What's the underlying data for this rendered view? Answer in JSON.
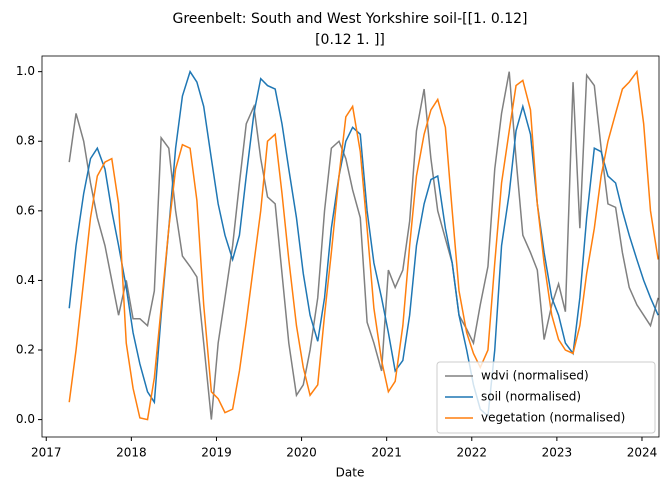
{
  "chart_data": {
    "type": "line",
    "title": [
      "Greenbelt: South and West Yorkshire soil-[[1.   0.12]",
      "[0.12 1.  ]]"
    ],
    "xlabel": "Date",
    "x": [
      2017.27,
      2017.35,
      2017.44,
      2017.52,
      2017.6,
      2017.69,
      2017.77,
      2017.85,
      2017.94,
      2018.02,
      2018.1,
      2018.19,
      2018.27,
      2018.35,
      2018.44,
      2018.52,
      2018.6,
      2018.69,
      2018.77,
      2018.85,
      2018.94,
      2019.02,
      2019.1,
      2019.19,
      2019.27,
      2019.35,
      2019.44,
      2019.52,
      2019.6,
      2019.69,
      2019.77,
      2019.85,
      2019.94,
      2020.02,
      2020.1,
      2020.19,
      2020.27,
      2020.35,
      2020.44,
      2020.52,
      2020.6,
      2020.69,
      2020.77,
      2020.85,
      2020.94,
      2021.02,
      2021.1,
      2021.19,
      2021.27,
      2021.35,
      2021.44,
      2021.52,
      2021.6,
      2021.69,
      2021.77,
      2021.85,
      2021.94,
      2022.02,
      2022.1,
      2022.19,
      2022.27,
      2022.35,
      2022.44,
      2022.52,
      2022.6,
      2022.69,
      2022.77,
      2022.85,
      2022.94,
      2023.02,
      2023.1,
      2023.19,
      2023.27,
      2023.35,
      2023.44,
      2023.52,
      2023.6,
      2023.69,
      2023.77,
      2023.85,
      2023.94,
      2024.02,
      2024.1,
      2024.19
    ],
    "series": [
      {
        "name": "wdvi (normalised)",
        "color": "#808080",
        "values": [
          0.74,
          0.88,
          0.8,
          0.68,
          0.58,
          0.5,
          0.4,
          0.3,
          0.4,
          0.29,
          0.29,
          0.27,
          0.37,
          0.81,
          0.78,
          0.6,
          0.47,
          0.44,
          0.41,
          0.22,
          0.0,
          0.22,
          0.35,
          0.5,
          0.68,
          0.85,
          0.9,
          0.75,
          0.64,
          0.62,
          0.42,
          0.22,
          0.07,
          0.1,
          0.2,
          0.35,
          0.6,
          0.78,
          0.8,
          0.75,
          0.66,
          0.58,
          0.28,
          0.22,
          0.14,
          0.43,
          0.38,
          0.43,
          0.57,
          0.83,
          0.95,
          0.75,
          0.6,
          0.52,
          0.45,
          0.3,
          0.26,
          0.22,
          0.33,
          0.44,
          0.72,
          0.88,
          1.0,
          0.75,
          0.53,
          0.48,
          0.43,
          0.23,
          0.33,
          0.39,
          0.31,
          0.97,
          0.55,
          0.99,
          0.96,
          0.78,
          0.62,
          0.61,
          0.48,
          0.38,
          0.33,
          0.3,
          0.27,
          0.35
        ]
      },
      {
        "name": "soil (normalised)",
        "color": "#1f77b4",
        "values": [
          0.32,
          0.5,
          0.65,
          0.75,
          0.78,
          0.72,
          0.6,
          0.5,
          0.38,
          0.25,
          0.16,
          0.08,
          0.05,
          0.3,
          0.55,
          0.78,
          0.93,
          1.0,
          0.97,
          0.9,
          0.75,
          0.62,
          0.53,
          0.46,
          0.53,
          0.7,
          0.88,
          0.98,
          0.96,
          0.95,
          0.85,
          0.72,
          0.58,
          0.42,
          0.3,
          0.225,
          0.35,
          0.55,
          0.7,
          0.8,
          0.84,
          0.82,
          0.6,
          0.45,
          0.35,
          0.25,
          0.14,
          0.17,
          0.3,
          0.5,
          0.62,
          0.69,
          0.7,
          0.55,
          0.45,
          0.3,
          0.2,
          0.1,
          0.03,
          0.01,
          0.2,
          0.5,
          0.65,
          0.83,
          0.9,
          0.82,
          0.62,
          0.48,
          0.35,
          0.3,
          0.22,
          0.19,
          0.35,
          0.58,
          0.78,
          0.77,
          0.7,
          0.68,
          0.6,
          0.53,
          0.46,
          0.4,
          0.35,
          0.3
        ]
      },
      {
        "name": "vegetation (normalised)",
        "color": "#ff7f0e",
        "values": [
          0.05,
          0.2,
          0.4,
          0.58,
          0.7,
          0.74,
          0.75,
          0.62,
          0.22,
          0.09,
          0.005,
          0.0,
          0.12,
          0.32,
          0.55,
          0.72,
          0.79,
          0.78,
          0.63,
          0.33,
          0.08,
          0.06,
          0.02,
          0.03,
          0.14,
          0.28,
          0.45,
          0.6,
          0.8,
          0.82,
          0.65,
          0.46,
          0.27,
          0.15,
          0.07,
          0.1,
          0.3,
          0.48,
          0.7,
          0.87,
          0.9,
          0.77,
          0.55,
          0.32,
          0.17,
          0.08,
          0.11,
          0.27,
          0.5,
          0.7,
          0.82,
          0.89,
          0.92,
          0.84,
          0.6,
          0.37,
          0.25,
          0.19,
          0.15,
          0.2,
          0.45,
          0.68,
          0.83,
          0.96,
          0.975,
          0.89,
          0.62,
          0.45,
          0.3,
          0.23,
          0.2,
          0.19,
          0.27,
          0.42,
          0.55,
          0.7,
          0.8,
          0.88,
          0.95,
          0.97,
          1.0,
          0.85,
          0.6,
          0.46
        ]
      }
    ],
    "xlim": [
      2016.95,
      2024.2
    ],
    "xticks": [
      2017,
      2018,
      2019,
      2020,
      2021,
      2022,
      2023,
      2024
    ],
    "ylim": [
      -0.05,
      1.045
    ],
    "yticks": [
      {
        "value": 0,
        "label": "0.0"
      },
      0.2,
      0.4,
      0.6,
      0.8,
      {
        "value": 1,
        "label": "1.0"
      }
    ],
    "grid": false,
    "legend": "lower right"
  }
}
